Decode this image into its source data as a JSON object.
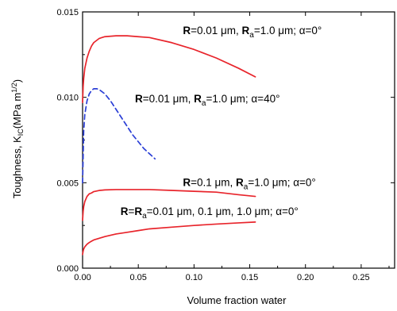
{
  "chart_data": {
    "type": "line",
    "title": "",
    "xlabel": "Volume fraction water",
    "ylabel_parts": {
      "main": "Toughness, K",
      "sub": "IC",
      "unit_open": "(MPa m",
      "unit_sup": "1/2",
      "unit_close": ")"
    },
    "xlim": [
      0.0,
      0.28
    ],
    "ylim": [
      0.0,
      0.015
    ],
    "xticks": [
      "0.00",
      "0.05",
      "0.10",
      "0.15",
      "0.20",
      "0.25"
    ],
    "yticks": [
      "0.000",
      "0.005",
      "0.010",
      "0.015"
    ],
    "xtick_values": [
      0.0,
      0.05,
      0.1,
      0.15,
      0.2,
      0.25
    ],
    "ytick_values": [
      0.0,
      0.005,
      0.01,
      0.015
    ],
    "grid": false,
    "series": [
      {
        "color": "#e8242b",
        "dash": false,
        "x": [
          0.0,
          0.0005,
          0.001,
          0.002,
          0.004,
          0.006,
          0.008,
          0.01,
          0.015,
          0.02,
          0.03,
          0.04,
          0.05,
          0.06,
          0.08,
          0.1,
          0.12,
          0.14,
          0.155
        ],
        "y": [
          0.0097,
          0.0106,
          0.0111,
          0.0117,
          0.0123,
          0.0127,
          0.013,
          0.0132,
          0.01345,
          0.01355,
          0.0136,
          0.0136,
          0.01355,
          0.0135,
          0.0132,
          0.0128,
          0.0123,
          0.0117,
          0.0112
        ]
      },
      {
        "color": "#2b3fd6",
        "dash": true,
        "x": [
          0.0,
          0.001,
          0.002,
          0.004,
          0.006,
          0.008,
          0.01,
          0.013,
          0.016,
          0.02,
          0.025,
          0.03,
          0.035,
          0.04,
          0.045,
          0.05,
          0.055,
          0.06,
          0.065
        ],
        "y": [
          0.005,
          0.008,
          0.009,
          0.0098,
          0.0102,
          0.0104,
          0.0105,
          0.0105,
          0.0104,
          0.0102,
          0.0098,
          0.0093,
          0.0088,
          0.0083,
          0.0078,
          0.0074,
          0.007,
          0.0067,
          0.0064
        ]
      },
      {
        "color": "#e8242b",
        "dash": false,
        "x": [
          0.0,
          0.0005,
          0.001,
          0.002,
          0.004,
          0.006,
          0.008,
          0.01,
          0.015,
          0.02,
          0.03,
          0.04,
          0.05,
          0.06,
          0.08,
          0.1,
          0.12,
          0.14,
          0.155
        ],
        "y": [
          0.0028,
          0.0033,
          0.0036,
          0.0039,
          0.0042,
          0.00435,
          0.0044,
          0.00448,
          0.00455,
          0.00458,
          0.0046,
          0.0046,
          0.0046,
          0.0046,
          0.00455,
          0.0045,
          0.00445,
          0.0043,
          0.0042
        ]
      },
      {
        "color": "#e8242b",
        "dash": false,
        "x": [
          0.0,
          0.0005,
          0.001,
          0.002,
          0.004,
          0.006,
          0.008,
          0.01,
          0.015,
          0.02,
          0.03,
          0.04,
          0.05,
          0.06,
          0.08,
          0.1,
          0.12,
          0.14,
          0.155
        ],
        "y": [
          0.0008,
          0.001,
          0.00112,
          0.00125,
          0.0014,
          0.0015,
          0.00158,
          0.00165,
          0.00175,
          0.00185,
          0.002,
          0.0021,
          0.0022,
          0.0023,
          0.0024,
          0.0025,
          0.00258,
          0.00265,
          0.0027
        ]
      }
    ],
    "annotations": [
      {
        "at": [
          0.09,
          0.0137
        ],
        "parts": [
          {
            "t": "R",
            "b": true
          },
          {
            "t": "=0.01 μm, "
          },
          {
            "t": "R",
            "b": true
          },
          {
            "t": "a",
            "sub": true
          },
          {
            "t": "=1.0 μm; α=0°"
          }
        ]
      },
      {
        "at": [
          0.047,
          0.0097
        ],
        "parts": [
          {
            "t": "R",
            "b": true
          },
          {
            "t": "=0.01 μm, "
          },
          {
            "t": "R",
            "b": true
          },
          {
            "t": "a",
            "sub": true
          },
          {
            "t": "=1.0 μm; α=40°"
          }
        ]
      },
      {
        "at": [
          0.09,
          0.0048
        ],
        "parts": [
          {
            "t": "R",
            "b": true
          },
          {
            "t": "=0.1 μm, "
          },
          {
            "t": "R",
            "b": true
          },
          {
            "t": "a",
            "sub": true
          },
          {
            "t": "=1.0 μm; α=0°"
          }
        ]
      },
      {
        "at": [
          0.034,
          0.0031
        ],
        "parts": [
          {
            "t": "R",
            "b": true
          },
          {
            "t": "="
          },
          {
            "t": "R",
            "b": true
          },
          {
            "t": "a",
            "sub": true
          },
          {
            "t": "=0.01 μm, 0.1 μm, 1.0 μm; α=0°"
          }
        ]
      }
    ]
  }
}
